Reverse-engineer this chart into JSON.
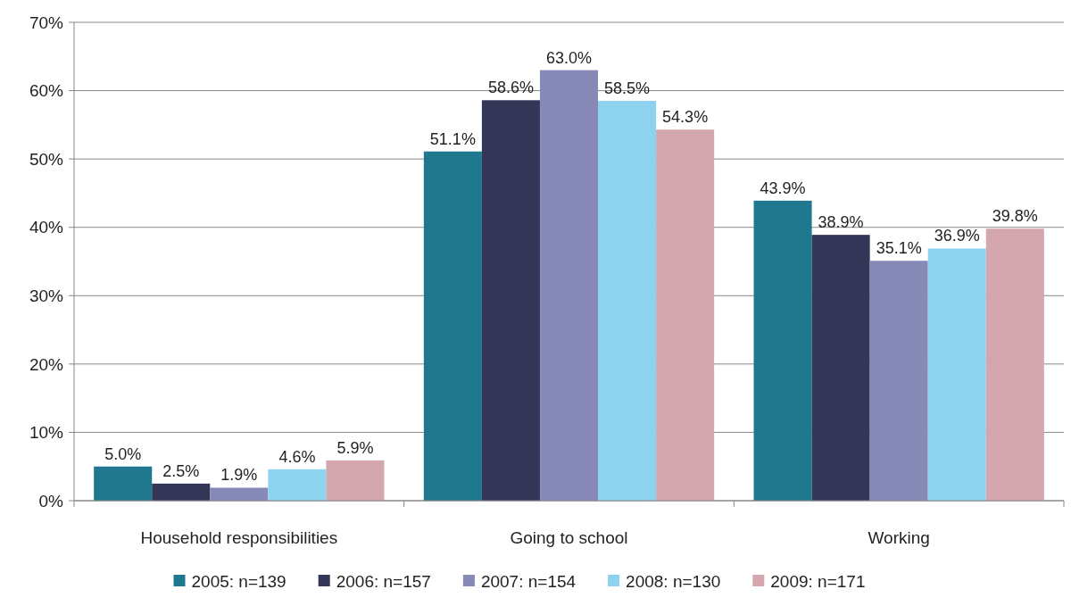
{
  "chart_data": {
    "type": "bar",
    "categories": [
      "Household responsibilities",
      "Going to school",
      "Working"
    ],
    "series": [
      {
        "name": "2005: n=139",
        "color": "#20788f",
        "values": [
          5.0,
          51.1,
          43.9
        ],
        "value_labels": [
          "5.0%",
          "51.1%",
          "43.9%"
        ]
      },
      {
        "name": "2006: n=157",
        "color": "#343658",
        "values": [
          2.5,
          58.6,
          38.9
        ],
        "value_labels": [
          "2.5%",
          "58.6%",
          "38.9%"
        ]
      },
      {
        "name": "2007: n=154",
        "color": "#8789b6",
        "values": [
          1.9,
          63.0,
          35.1
        ],
        "value_labels": [
          "1.9%",
          "63.0%",
          "35.1%"
        ]
      },
      {
        "name": "2008: n=130",
        "color": "#8dd3ef",
        "values": [
          4.6,
          58.5,
          36.9
        ],
        "value_labels": [
          "4.6%",
          "58.5%",
          "36.9%"
        ]
      },
      {
        "name": "2009: n=171",
        "color": "#d4a6ae",
        "values": [
          5.9,
          54.3,
          39.8
        ],
        "value_labels": [
          "5.9%",
          "54.3%",
          "39.8%"
        ]
      }
    ],
    "ylim": [
      0,
      70
    ],
    "yticks": [
      {
        "value": 0,
        "label": "0%"
      },
      {
        "value": 10,
        "label": "10%"
      },
      {
        "value": 20,
        "label": "20%"
      },
      {
        "value": 30,
        "label": "30%"
      },
      {
        "value": 40,
        "label": "40%"
      },
      {
        "value": 50,
        "label": "50%"
      },
      {
        "value": 60,
        "label": "60%"
      },
      {
        "value": 70,
        "label": "70%"
      }
    ],
    "grid": "y",
    "legend": "bottom"
  }
}
